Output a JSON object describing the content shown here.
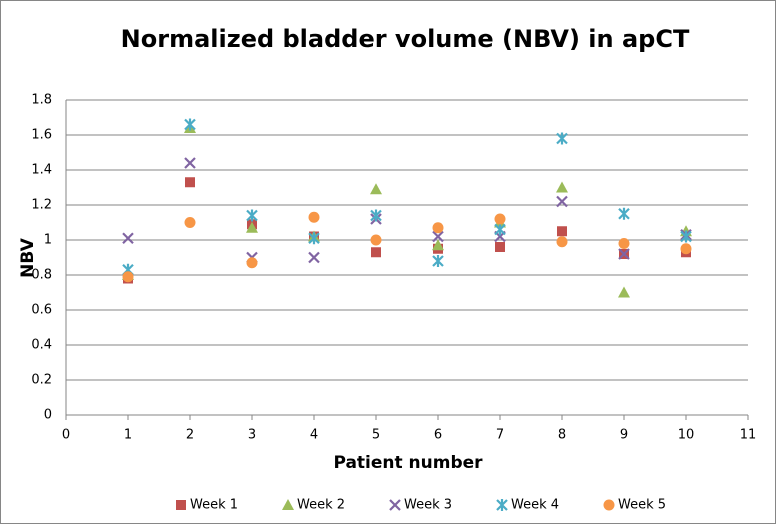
{
  "chart_data": {
    "type": "scatter",
    "title": "Normalized bladder volume (NBV) in apCT",
    "x_label": "Patient number",
    "y_label": "NBV",
    "x": [
      1,
      2,
      3,
      4,
      5,
      6,
      7,
      8,
      9,
      10
    ],
    "series": [
      {
        "name": "Week 1",
        "color": "#c0504d",
        "marker": "square",
        "values": [
          0.78,
          1.33,
          1.09,
          1.02,
          0.93,
          0.95,
          0.96,
          1.05,
          0.92,
          0.93
        ]
      },
      {
        "name": "Week 2",
        "color": "#9bbb59",
        "marker": "triangle",
        "values": [
          0.8,
          1.64,
          1.07,
          1.02,
          1.29,
          0.97,
          1.1,
          1.3,
          0.7,
          1.05
        ]
      },
      {
        "name": "Week 3",
        "color": "#8064a2",
        "marker": "x",
        "values": [
          1.01,
          1.44,
          0.9,
          0.9,
          1.12,
          1.02,
          1.02,
          1.22,
          0.92,
          1.03
        ]
      },
      {
        "name": "Week 4",
        "color": "#4bacc6",
        "marker": "star",
        "values": [
          0.83,
          1.66,
          1.14,
          1.01,
          1.14,
          0.88,
          1.06,
          1.58,
          1.15,
          1.02
        ]
      },
      {
        "name": "Week 5",
        "color": "#f79646",
        "marker": "circle",
        "values": [
          0.79,
          1.1,
          0.87,
          1.13,
          1.0,
          1.07,
          1.12,
          0.99,
          0.98,
          0.95
        ]
      }
    ],
    "xlim": [
      0,
      11
    ],
    "xticks": [
      0,
      1,
      2,
      3,
      4,
      5,
      6,
      7,
      8,
      9,
      10,
      11
    ],
    "ylim": [
      0,
      1.8
    ],
    "yticks": [
      0,
      0.2,
      0.4,
      0.6,
      0.8,
      1,
      1.2,
      1.4,
      1.6,
      1.8
    ],
    "grid": true,
    "legend": "bottom"
  }
}
